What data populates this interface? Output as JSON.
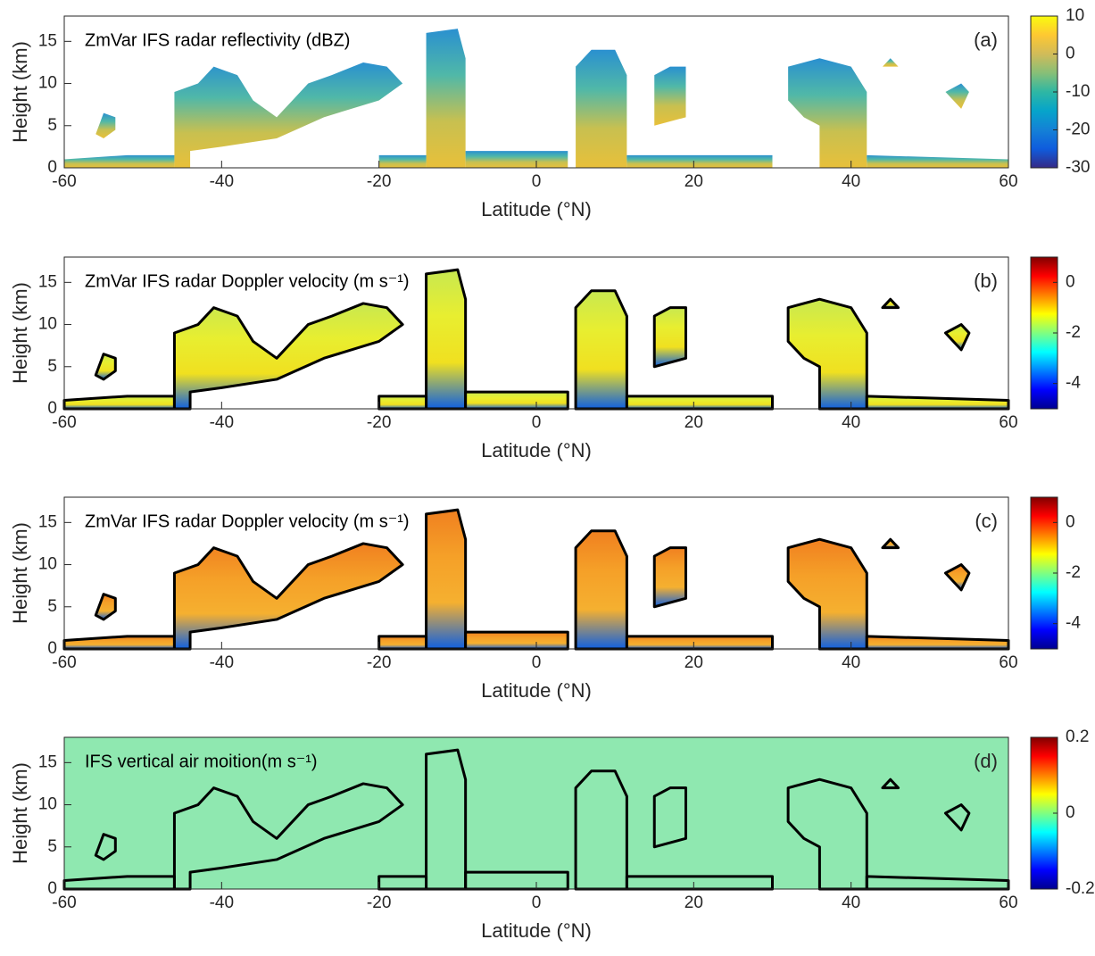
{
  "chart_data": [
    {
      "type": "heatmap",
      "title": "ZmVar IFS radar reflectivity (dBZ)",
      "panel_label": "(a)",
      "xlabel": "Latitude (°N)",
      "ylabel": "Height (km)",
      "xlim": [
        -60,
        60
      ],
      "xticks": [
        -60,
        -40,
        -20,
        0,
        20,
        40,
        60
      ],
      "ylim": [
        0,
        18
      ],
      "yticks": [
        0,
        5,
        10,
        15
      ],
      "colorbar": {
        "colormap": "parula",
        "clim": [
          -30,
          10
        ],
        "ticks": [
          10,
          0,
          -10,
          -20,
          -30
        ]
      }
    },
    {
      "type": "heatmap",
      "title": "ZmVar IFS radar Doppler velocity (m s⁻¹)",
      "panel_label": "(b)",
      "xlabel": "Latitude (°N)",
      "ylabel": "Height (km)",
      "xlim": [
        -60,
        60
      ],
      "xticks": [
        -60,
        -40,
        -20,
        0,
        20,
        40,
        60
      ],
      "ylim": [
        0,
        18
      ],
      "yticks": [
        0,
        5,
        10,
        15
      ],
      "colorbar": {
        "colormap": "jet",
        "clim": [
          -5,
          1
        ],
        "ticks": [
          0,
          -2,
          -4
        ]
      }
    },
    {
      "type": "heatmap",
      "title": "ZmVar IFS radar Doppler velocity (m s⁻¹)",
      "panel_label": "(c)",
      "xlabel": "Latitude (°N)",
      "ylabel": "Height (km)",
      "xlim": [
        -60,
        60
      ],
      "xticks": [
        -60,
        -40,
        -20,
        0,
        20,
        40,
        60
      ],
      "ylim": [
        0,
        18
      ],
      "yticks": [
        0,
        5,
        10,
        15
      ],
      "colorbar": {
        "colormap": "jet",
        "clim": [
          -5,
          1
        ],
        "ticks": [
          0,
          -2,
          -4
        ]
      }
    },
    {
      "type": "heatmap",
      "title": "IFS vertical air moition(m s⁻¹)",
      "panel_label": "(d)",
      "xlabel": "Latitude (°N)",
      "ylabel": "Height (km)",
      "xlim": [
        -60,
        60
      ],
      "xticks": [
        -60,
        -40,
        -20,
        0,
        20,
        40,
        60
      ],
      "ylim": [
        0,
        18
      ],
      "yticks": [
        0,
        5,
        10,
        15
      ],
      "colorbar": {
        "colormap": "jet",
        "clim": [
          -0.2,
          0.2
        ],
        "ticks": [
          0.2,
          0,
          -0.2
        ]
      }
    }
  ]
}
